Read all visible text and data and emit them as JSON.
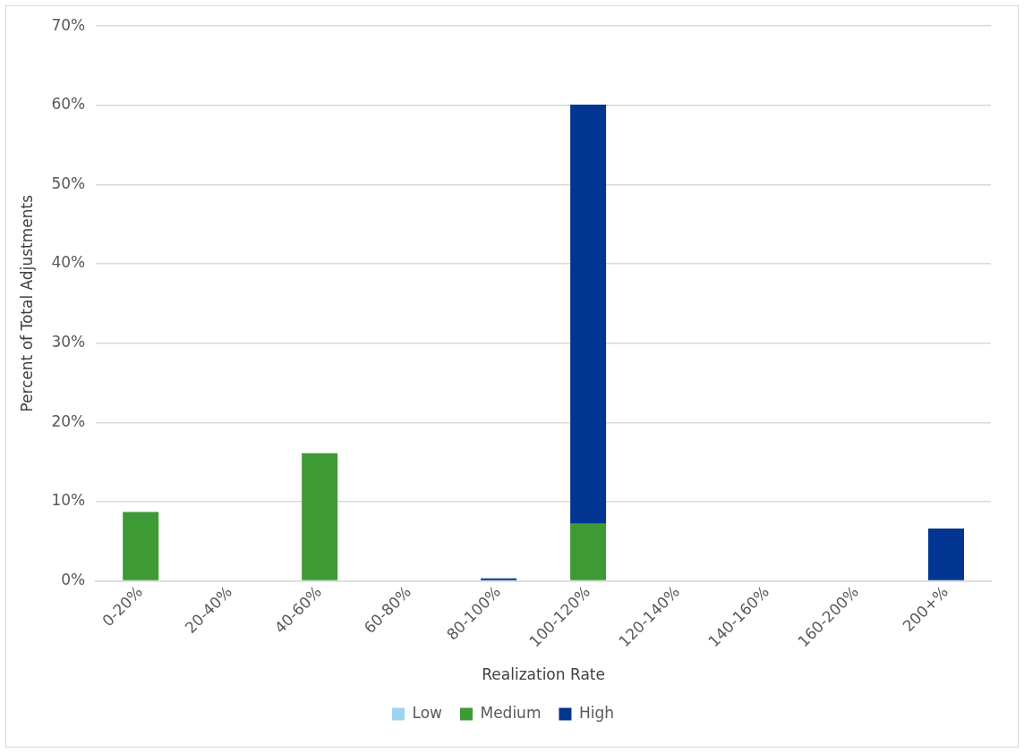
{
  "chart_data": {
    "type": "bar",
    "stacked": true,
    "xlabel": "Realization Rate",
    "ylabel": "Percent of Total Adjustments",
    "categories": [
      "0-20%",
      "20-40%",
      "40-60%",
      "60-80%",
      "80-100%",
      "100-120%",
      "120-140%",
      "140-160%",
      "160-200%",
      "200+%"
    ],
    "series": [
      {
        "name": "Low",
        "color": "#9dd3ee",
        "values": [
          0,
          0,
          0,
          0,
          0,
          0,
          0,
          0,
          0,
          0
        ]
      },
      {
        "name": "Medium",
        "color": "#3e9a35",
        "values": [
          8.7,
          0,
          16.1,
          0,
          0,
          7.2,
          0,
          0,
          0,
          0
        ]
      },
      {
        "name": "High",
        "color": "#023591",
        "values": [
          0,
          0,
          0,
          0,
          0.3,
          52.9,
          0,
          0,
          0,
          6.6
        ]
      }
    ],
    "ylim": [
      0,
      70
    ],
    "yticks": [
      {
        "value": 0,
        "label": "0%"
      },
      {
        "value": 10,
        "label": "10%"
      },
      {
        "value": 20,
        "label": "20%"
      },
      {
        "value": 30,
        "label": "30%"
      },
      {
        "value": 40,
        "label": "40%"
      },
      {
        "value": 50,
        "label": "50%"
      },
      {
        "value": 60,
        "label": "60%"
      },
      {
        "value": 70,
        "label": "70%"
      }
    ],
    "grid": "y",
    "legend": "bottom"
  }
}
